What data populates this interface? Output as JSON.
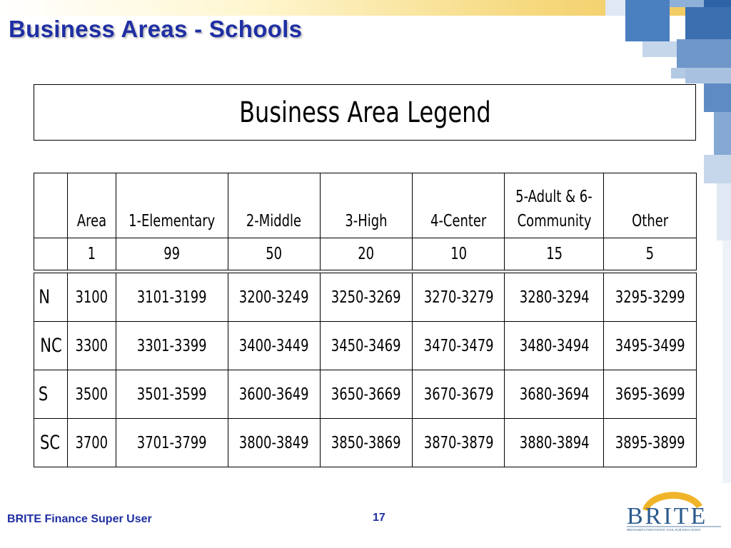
{
  "slide": {
    "title": "Business Areas - Schools",
    "footer_left": "BRITE Finance Super User",
    "page_number": "17"
  },
  "legend_title": "Business Area Legend",
  "table": {
    "headers": [
      "",
      "Area",
      "1-Elementary",
      "2-Middle",
      "3-High",
      "4-Center",
      "5-Adult & 6-Community",
      "Other"
    ],
    "header_lines": {
      "adult_line1": "5-Adult & 6-",
      "adult_line2": "Community"
    },
    "counts": [
      "",
      "1",
      "99",
      "50",
      "20",
      "10",
      "15",
      "5"
    ],
    "rows": [
      {
        "label": "N",
        "cells": [
          "3100",
          "3101-3199",
          "3200-3249",
          "3250-3269",
          "3270-3279",
          "3280-3294",
          "3295-3299"
        ]
      },
      {
        "label": "NC",
        "cells": [
          "3300",
          "3301-3399",
          "3400-3449",
          "3450-3469",
          "3470-3479",
          "3480-3494",
          "3495-3499"
        ]
      },
      {
        "label": "S",
        "cells": [
          "3500",
          "3501-3599",
          "3600-3649",
          "3650-3669",
          "3670-3679",
          "3680-3694",
          "3695-3699"
        ]
      },
      {
        "label": "SC",
        "cells": [
          "3700",
          "3701-3799",
          "3800-3849",
          "3850-3869",
          "3870-3879",
          "3880-3894",
          "3895-3899"
        ]
      }
    ]
  },
  "logo": {
    "text": "BRITE",
    "tagline": "BROWARD'S INNOVATIVE TOOL FOR EDUCATION"
  },
  "colors": {
    "title": "#1f2fa3",
    "logo_text": "#2a5a8c",
    "logo_sun": "#f0b429",
    "deco_blue": "#3f74b5"
  }
}
